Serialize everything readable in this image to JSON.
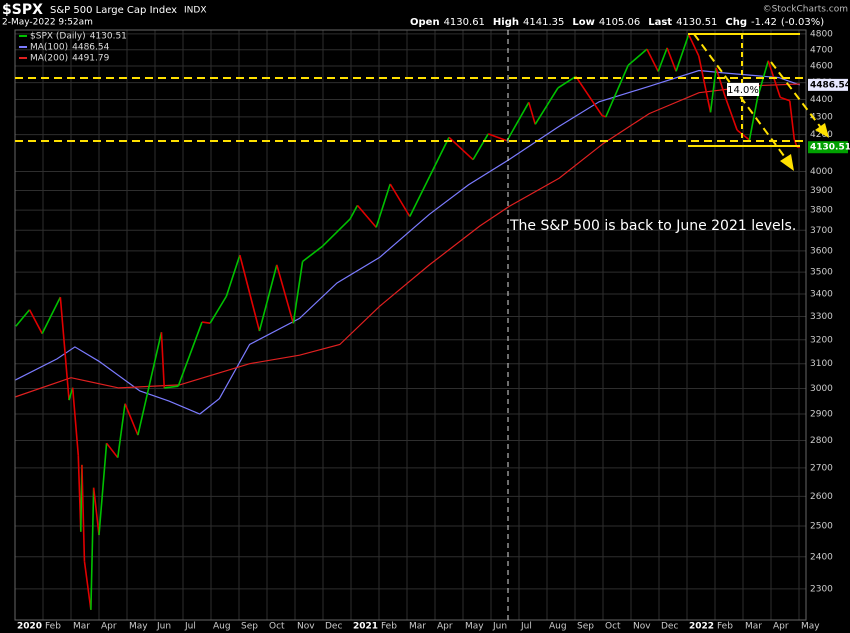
{
  "chart_data": {
    "type": "line",
    "symbol": "$SPX",
    "title": "S&P 500 Large Cap Index",
    "exchange": "INDX",
    "timestamp": "2-May-2022 9:52am",
    "quote": [
      {
        "label": "Open",
        "value": 4130.61
      },
      {
        "label": "High",
        "value": 4141.35
      },
      {
        "label": "Low",
        "value": 4105.06
      },
      {
        "label": "Last",
        "value": 4130.51
      },
      {
        "label": "Chg",
        "value": -1.42
      }
    ],
    "change_pct": "(-0.03%)",
    "watermark": "©StockCharts.com",
    "log_scale": true,
    "grid": true,
    "xlim": [
      0,
      28.25
    ],
    "xticks": [
      {
        "value": 0,
        "label": "2020"
      },
      {
        "value": 1,
        "label": "Feb"
      },
      {
        "value": 2,
        "label": "Mar"
      },
      {
        "value": 3,
        "label": "Apr"
      },
      {
        "value": 4,
        "label": "May"
      },
      {
        "value": 5,
        "label": "Jun"
      },
      {
        "value": 6,
        "label": "Jul"
      },
      {
        "value": 7,
        "label": "Aug"
      },
      {
        "value": 8,
        "label": "Sep"
      },
      {
        "value": 9,
        "label": "Oct"
      },
      {
        "value": 10,
        "label": "Nov"
      },
      {
        "value": 11,
        "label": "Dec"
      },
      {
        "value": 12,
        "label": "2021"
      },
      {
        "value": 13,
        "label": "Feb"
      },
      {
        "value": 14,
        "label": "Mar"
      },
      {
        "value": 15,
        "label": "Apr"
      },
      {
        "value": 16,
        "label": "May"
      },
      {
        "value": 17,
        "label": "Jun"
      },
      {
        "value": 18,
        "label": "Jul"
      },
      {
        "value": 19,
        "label": "Aug"
      },
      {
        "value": 20,
        "label": "Sep"
      },
      {
        "value": 21,
        "label": "Oct"
      },
      {
        "value": 22,
        "label": "Nov"
      },
      {
        "value": 23,
        "label": "Dec"
      },
      {
        "value": 24,
        "label": "2022"
      },
      {
        "value": 25,
        "label": "Feb"
      },
      {
        "value": 26,
        "label": "Mar"
      },
      {
        "value": 27,
        "label": "Apr"
      },
      {
        "value": 28,
        "label": "May"
      }
    ],
    "ylim": [
      2207,
      4825
    ],
    "yticks": [
      2300,
      2400,
      2500,
      2600,
      2700,
      2800,
      2900,
      3000,
      3100,
      3200,
      3300,
      3400,
      3500,
      3600,
      3700,
      3800,
      3900,
      4000,
      4200,
      4300,
      4400,
      4500,
      4600,
      4700,
      4800
    ],
    "series": [
      {
        "name": "$SPX (Daily)",
        "color_up": "#00c000",
        "color_down": "#e00000",
        "x": [
          0.03,
          0.52,
          0.97,
          1.62,
          1.93,
          2.06,
          2.26,
          2.35,
          2.39,
          2.48,
          2.71,
          2.81,
          3.0,
          3.27,
          3.67,
          3.93,
          4.39,
          5.23,
          5.33,
          5.83,
          6.68,
          6.97,
          7.55,
          8.03,
          8.73,
          9.35,
          9.94,
          10.27,
          10.97,
          11.97,
          12.23,
          12.9,
          13.4,
          14.1,
          14.81,
          15.5,
          16.36,
          16.9,
          17.57,
          18.35,
          18.58,
          19.39,
          20.03,
          20.97,
          21.1,
          21.9,
          22.57,
          22.97,
          23.29,
          23.61,
          24.06,
          24.42,
          24.84,
          25.04,
          25.36,
          25.79,
          26.23,
          26.52,
          26.9,
          27.33,
          27.67,
          27.83,
          27.93,
          28.03
        ],
        "values": [
          3258,
          3330,
          3226,
          3386,
          2954,
          3003,
          2746,
          2481,
          2711,
          2386,
          2237,
          2630,
          2470,
          2790,
          2737,
          2940,
          2820,
          3232,
          3002,
          3009,
          3276,
          3271,
          3390,
          3580,
          3237,
          3534,
          3270,
          3550,
          3621,
          3756,
          3824,
          3714,
          3934,
          3768,
          3974,
          4185,
          4063,
          4204,
          4166,
          4384,
          4258,
          4468,
          4537,
          4307,
          4300,
          4605,
          4704,
          4567,
          4712,
          4568,
          4796,
          4662,
          4326,
          4589,
          4418,
          4225,
          4170,
          4411,
          4632,
          4413,
          4393,
          4175,
          4131,
          4130.51
        ]
      },
      {
        "name": "MA(100)",
        "color": "#7b7bff",
        "x": [
          0,
          1.5,
          2.14,
          3,
          4.46,
          5.5,
          6.6,
          7.3,
          8.38,
          10.16,
          11.5,
          13.02,
          14.8,
          16.2,
          17.65,
          19.44,
          20.86,
          22.65,
          24.43,
          25.5,
          27.28,
          28.03
        ],
        "values": [
          3033,
          3120,
          3170,
          3110,
          2990,
          2950,
          2900,
          2960,
          3180,
          3292,
          3450,
          3569,
          3779,
          3930,
          4064,
          4247,
          4387,
          4478,
          4573,
          4555,
          4530,
          4486.54
        ]
      },
      {
        "name": "MA(200)",
        "color": "#e02020",
        "x": [
          0,
          2.0,
          3.7,
          5.88,
          8.38,
          10.16,
          11.6,
          13.02,
          14.8,
          16.6,
          17.65,
          19.44,
          21.0,
          22.65,
          24.43,
          26.5,
          28.03
        ],
        "values": [
          2966,
          3043,
          3002,
          3014,
          3100,
          3135,
          3180,
          3345,
          3534,
          3721,
          3819,
          3965,
          4150,
          4319,
          4440,
          4482,
          4491.79
        ]
      }
    ],
    "annotations": [
      "14.0%",
      "The S&P 500 is back to June 2021 levels."
    ]
  }
}
